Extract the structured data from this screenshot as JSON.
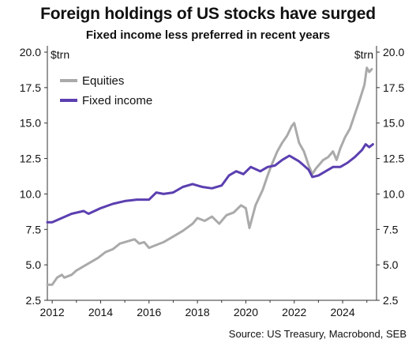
{
  "chart_data": {
    "type": "line",
    "title": "Foreign holdings of US stocks have surged",
    "subtitle": "Fixed income less preferred in recent years",
    "left_unit": "$trn",
    "right_unit": "$trn",
    "source": "Source: US Treasury, Macrobond, SEB",
    "ylim": [
      2.5,
      20.0
    ],
    "yticks": [
      "20.0",
      "17.5",
      "15.0",
      "12.5",
      "10.0",
      "7.5",
      "5.0",
      "2.5"
    ],
    "xlim": [
      2011.8,
      2025.4
    ],
    "xticks": [
      "2012",
      "2014",
      "2016",
      "2018",
      "2020",
      "2022",
      "2024"
    ],
    "legend": {
      "placement": "top-left"
    },
    "colors": {
      "equities": "#aaaaaa",
      "fixed_income": "#5b3fb0",
      "axis": "#333333"
    },
    "series": [
      {
        "name": "Equities",
        "key": "equities",
        "points": [
          [
            2011.8,
            3.6
          ],
          [
            2012.0,
            3.6
          ],
          [
            2012.2,
            4.1
          ],
          [
            2012.4,
            4.3
          ],
          [
            2012.5,
            4.1
          ],
          [
            2012.8,
            4.3
          ],
          [
            2013.0,
            4.6
          ],
          [
            2013.3,
            4.9
          ],
          [
            2013.6,
            5.2
          ],
          [
            2013.9,
            5.5
          ],
          [
            2014.2,
            5.9
          ],
          [
            2014.5,
            6.1
          ],
          [
            2014.8,
            6.5
          ],
          [
            2015.2,
            6.7
          ],
          [
            2015.4,
            6.8
          ],
          [
            2015.6,
            6.5
          ],
          [
            2015.8,
            6.6
          ],
          [
            2016.0,
            6.2
          ],
          [
            2016.3,
            6.4
          ],
          [
            2016.6,
            6.6
          ],
          [
            2017.0,
            7.0
          ],
          [
            2017.4,
            7.4
          ],
          [
            2017.8,
            7.9
          ],
          [
            2018.0,
            8.3
          ],
          [
            2018.3,
            8.1
          ],
          [
            2018.6,
            8.4
          ],
          [
            2018.9,
            7.9
          ],
          [
            2019.2,
            8.5
          ],
          [
            2019.5,
            8.7
          ],
          [
            2019.8,
            9.2
          ],
          [
            2020.0,
            9.0
          ],
          [
            2020.15,
            7.6
          ],
          [
            2020.4,
            9.2
          ],
          [
            2020.7,
            10.3
          ],
          [
            2020.9,
            11.3
          ],
          [
            2021.1,
            12.2
          ],
          [
            2021.3,
            13.0
          ],
          [
            2021.5,
            13.6
          ],
          [
            2021.7,
            14.1
          ],
          [
            2021.9,
            14.8
          ],
          [
            2022.0,
            15.0
          ],
          [
            2022.2,
            13.6
          ],
          [
            2022.4,
            13.0
          ],
          [
            2022.6,
            12.0
          ],
          [
            2022.75,
            11.4
          ],
          [
            2022.9,
            11.8
          ],
          [
            2023.2,
            12.4
          ],
          [
            2023.4,
            12.6
          ],
          [
            2023.6,
            13.0
          ],
          [
            2023.75,
            12.4
          ],
          [
            2023.9,
            13.2
          ],
          [
            2024.1,
            14.0
          ],
          [
            2024.3,
            14.6
          ],
          [
            2024.5,
            15.6
          ],
          [
            2024.7,
            16.6
          ],
          [
            2024.9,
            17.7
          ],
          [
            2025.0,
            18.9
          ],
          [
            2025.1,
            18.6
          ],
          [
            2025.2,
            18.8
          ]
        ]
      },
      {
        "name": "Fixed income",
        "key": "fixed_income",
        "points": [
          [
            2011.8,
            8.0
          ],
          [
            2012.0,
            8.0
          ],
          [
            2012.4,
            8.3
          ],
          [
            2012.8,
            8.6
          ],
          [
            2013.3,
            8.8
          ],
          [
            2013.5,
            8.6
          ],
          [
            2014.0,
            9.0
          ],
          [
            2014.5,
            9.3
          ],
          [
            2015.0,
            9.5
          ],
          [
            2015.5,
            9.6
          ],
          [
            2016.0,
            9.6
          ],
          [
            2016.3,
            10.1
          ],
          [
            2016.6,
            10.0
          ],
          [
            2017.0,
            10.1
          ],
          [
            2017.4,
            10.5
          ],
          [
            2017.8,
            10.7
          ],
          [
            2018.2,
            10.5
          ],
          [
            2018.6,
            10.4
          ],
          [
            2019.0,
            10.6
          ],
          [
            2019.3,
            11.3
          ],
          [
            2019.6,
            11.6
          ],
          [
            2019.9,
            11.4
          ],
          [
            2020.2,
            11.9
          ],
          [
            2020.6,
            11.6
          ],
          [
            2020.9,
            11.9
          ],
          [
            2021.2,
            12.0
          ],
          [
            2021.5,
            12.4
          ],
          [
            2021.8,
            12.7
          ],
          [
            2022.0,
            12.5
          ],
          [
            2022.2,
            12.3
          ],
          [
            2022.4,
            12.0
          ],
          [
            2022.6,
            11.7
          ],
          [
            2022.75,
            11.2
          ],
          [
            2023.0,
            11.3
          ],
          [
            2023.3,
            11.6
          ],
          [
            2023.6,
            11.9
          ],
          [
            2023.9,
            11.9
          ],
          [
            2024.2,
            12.2
          ],
          [
            2024.5,
            12.6
          ],
          [
            2024.8,
            13.1
          ],
          [
            2024.95,
            13.5
          ],
          [
            2025.1,
            13.3
          ],
          [
            2025.25,
            13.5
          ]
        ]
      }
    ]
  }
}
